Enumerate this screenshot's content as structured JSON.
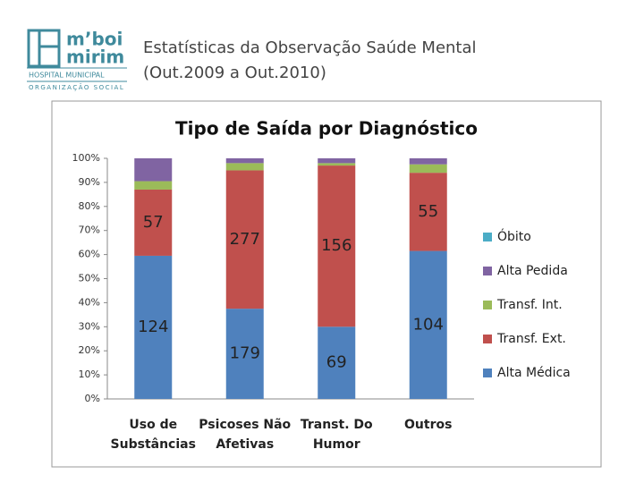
{
  "header": {
    "logo": {
      "line1": "m’boi",
      "line2": "mirim",
      "line3": "HOSPITAL MUNICIPAL",
      "line4": "ORGANIZAÇÃO SOCIAL"
    },
    "title_line1": "Estatísticas da Observação Saúde Mental",
    "title_line2": "(Out.2009 a Out.2010)"
  },
  "chart_data": {
    "type": "stacked_bar",
    "title": "Tipo de Saída por Diagnóstico",
    "categories": [
      "Uso de\nSubstâncias",
      "Psicoses Não\nAfetivas",
      "Transt. Do\nHumor",
      "Outros"
    ],
    "series": [
      {
        "name": "Alta Médica",
        "color": "#4f81bd",
        "values": [
          59.5,
          37.5,
          30,
          61.5
        ],
        "data_labels": [
          124,
          179,
          69,
          104
        ]
      },
      {
        "name": "Transf. Ext.",
        "color": "#c0504d",
        "values": [
          27.5,
          57.5,
          67,
          32.5
        ],
        "data_labels": [
          57,
          277,
          156,
          55
        ]
      },
      {
        "name": "Transf. Int.",
        "color": "#9bbb59",
        "values": [
          3.5,
          3,
          1,
          3.5
        ]
      },
      {
        "name": "Alta Pedida",
        "color": "#8064a2",
        "values": [
          9.5,
          2,
          2,
          2.5
        ]
      },
      {
        "name": "Óbito",
        "color": "#4bacc6",
        "values": [
          0,
          0,
          0,
          0
        ]
      }
    ],
    "ylim": [
      0,
      100
    ],
    "yticks": [
      {
        "value": 0,
        "label": "0%"
      },
      {
        "value": 10,
        "label": "10%"
      },
      {
        "value": 20,
        "label": "20%"
      },
      {
        "value": 30,
        "label": "30%"
      },
      {
        "value": 40,
        "label": "40%"
      },
      {
        "value": 50,
        "label": "50%"
      },
      {
        "value": 60,
        "label": "60%"
      },
      {
        "value": 70,
        "label": "70%"
      },
      {
        "value": 80,
        "label": "80%"
      },
      {
        "value": 90,
        "label": "90%"
      },
      {
        "value": 100,
        "label": "100%"
      }
    ],
    "legend": "right"
  }
}
